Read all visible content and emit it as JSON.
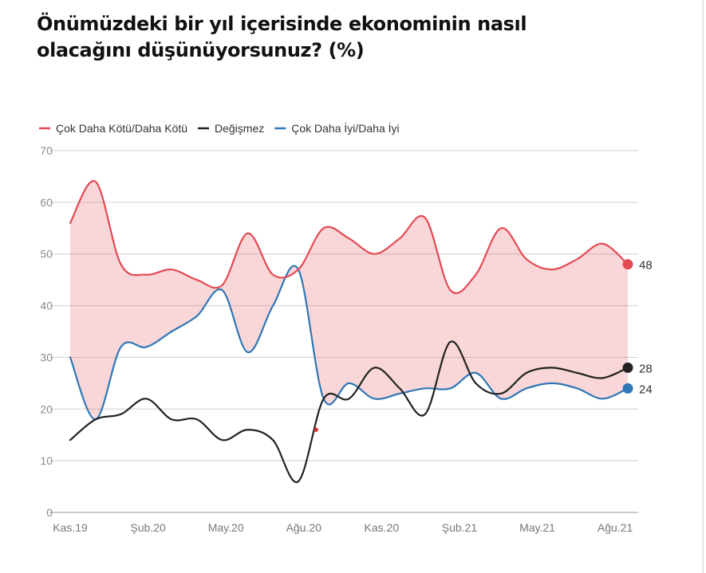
{
  "title": "Önümüzdeki bir yıl içerisinde ekonominin nasıl olacağını düşünüyorsunuz? (%)",
  "chart_data": {
    "type": "line",
    "title": "Önümüzdeki bir yıl içerisinde ekonominin nasıl olacağını düşünüyorsunuz? (%)",
    "ylim": [
      0,
      70
    ],
    "y_ticks": [
      "0",
      "10",
      "20",
      "30",
      "40",
      "50",
      "60",
      "70"
    ],
    "x_tick_labels": [
      "Kas.19",
      "Şub.20",
      "May.20",
      "Ağu.20",
      "Kas.20",
      "Şub.21",
      "May.21",
      "Ağu.21"
    ],
    "x_range": [
      0,
      22
    ],
    "grid": true,
    "legend_position": "top-left",
    "series": [
      {
        "name": "Çok Daha Kötü/Daha Kötü",
        "color": "#e34a53",
        "x": [
          0,
          1,
          2,
          3,
          4,
          5,
          6,
          7,
          8,
          9,
          10,
          11,
          12,
          13,
          14,
          15,
          16,
          17,
          18,
          19,
          20,
          21,
          22
        ],
        "values": [
          56,
          64,
          48,
          46,
          47,
          45,
          44,
          54,
          46,
          47,
          55,
          53,
          50,
          53,
          57,
          43,
          46,
          55,
          49,
          47,
          49,
          52,
          48
        ],
        "end_label": "48"
      },
      {
        "name": "Değişmez",
        "color": "#222222",
        "x": [
          0,
          1,
          2,
          3,
          4,
          5,
          6,
          7,
          8,
          9,
          10,
          11,
          12,
          13,
          14,
          15,
          16,
          17,
          18,
          19,
          20,
          21,
          22
        ],
        "values": [
          14,
          18,
          19,
          22,
          18,
          18,
          14,
          16,
          14,
          6,
          22,
          22,
          28,
          24,
          19,
          33,
          25,
          23,
          27,
          28,
          27,
          26,
          28
        ],
        "end_label": "28"
      },
      {
        "name": "Çok Daha İyi/Daha İyi",
        "color": "#2f77b5",
        "x": [
          0,
          1,
          2,
          3,
          4,
          5,
          6,
          7,
          8,
          9,
          10,
          11,
          12,
          13,
          14,
          15,
          16,
          17,
          18,
          19,
          20,
          21,
          22
        ],
        "values": [
          30,
          18,
          32,
          32,
          35,
          38,
          43,
          31,
          40,
          47,
          22,
          25,
          22,
          23,
          24,
          24,
          27,
          22,
          24,
          25,
          24,
          22,
          24
        ],
        "end_label": "24"
      }
    ],
    "annotation_dot": {
      "x": 9.7,
      "y": 16,
      "color": "#d62728"
    }
  }
}
